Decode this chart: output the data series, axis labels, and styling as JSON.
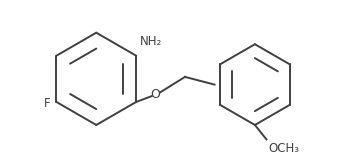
{
  "bg_color": "#ffffff",
  "line_color": "#404040",
  "line_width": 1.4,
  "font_size": 8.5,
  "font_color": "#404040",
  "figsize": [
    3.56,
    1.57
  ],
  "dpi": 100,
  "NH2_label": "NH₂",
  "F_label": "F",
  "O_label": "O",
  "OCH3_label": "OCH₃"
}
